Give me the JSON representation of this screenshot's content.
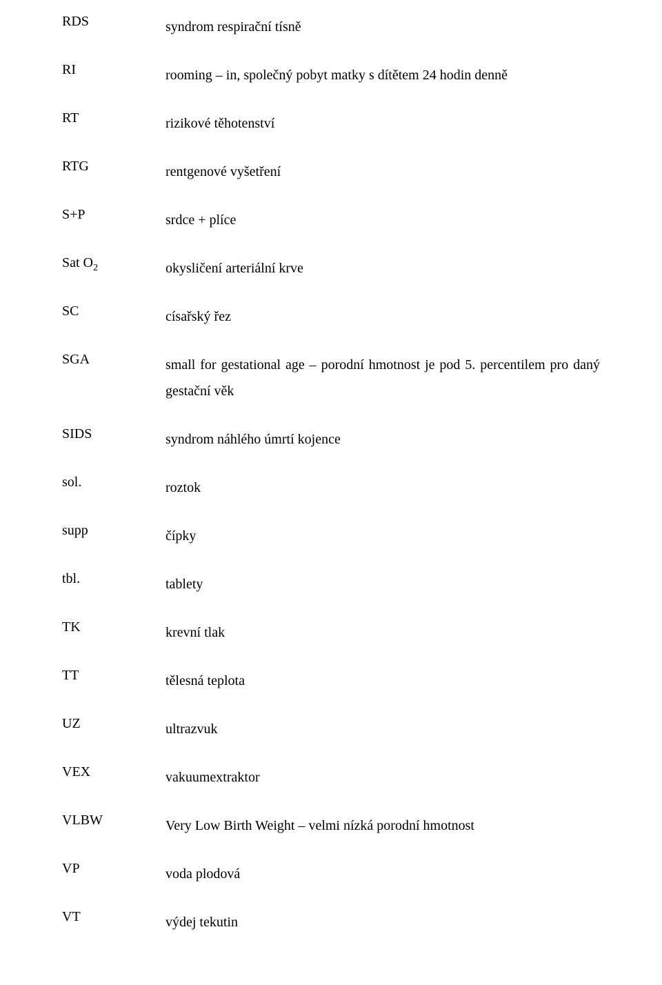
{
  "rows": [
    {
      "abbr": "RDS",
      "def": "syndrom respirační tísně"
    },
    {
      "abbr": "RI",
      "def": "rooming – in, společný pobyt matky s dítětem 24 hodin denně"
    },
    {
      "abbr": "RT",
      "def": "rizikové těhotenství"
    },
    {
      "abbr": "RTG",
      "def": "rentgenové vyšetření"
    },
    {
      "abbr": "S+P",
      "def": "srdce + plíce"
    },
    {
      "abbr": "Sat O",
      "sub": "2",
      "def": "okysličení arteriální krve"
    },
    {
      "abbr": "SC",
      "def": "císařský řez"
    },
    {
      "abbr": "SGA",
      "def": "small for gestational age – porodní hmotnost je pod 5. percentilem pro daný gestační věk"
    },
    {
      "abbr": "SIDS",
      "def": "syndrom náhlého úmrtí kojence"
    },
    {
      "abbr": "sol.",
      "def": "roztok"
    },
    {
      "abbr": "supp",
      "def": "čípky"
    },
    {
      "abbr": "tbl.",
      "def": "tablety"
    },
    {
      "abbr": "TK",
      "def": "krevní tlak"
    },
    {
      "abbr": "TT",
      "def": "tělesná teplota"
    },
    {
      "abbr": "UZ",
      "def": "ultrazvuk"
    },
    {
      "abbr": "VEX",
      "def": "vakuumextraktor"
    },
    {
      "abbr": "VLBW",
      "def": "Very Low Birth Weight – velmi nízká porodní hmotnost"
    },
    {
      "abbr": "VP",
      "def": "voda plodová"
    },
    {
      "abbr": "VT",
      "def": "výdej tekutin"
    }
  ]
}
